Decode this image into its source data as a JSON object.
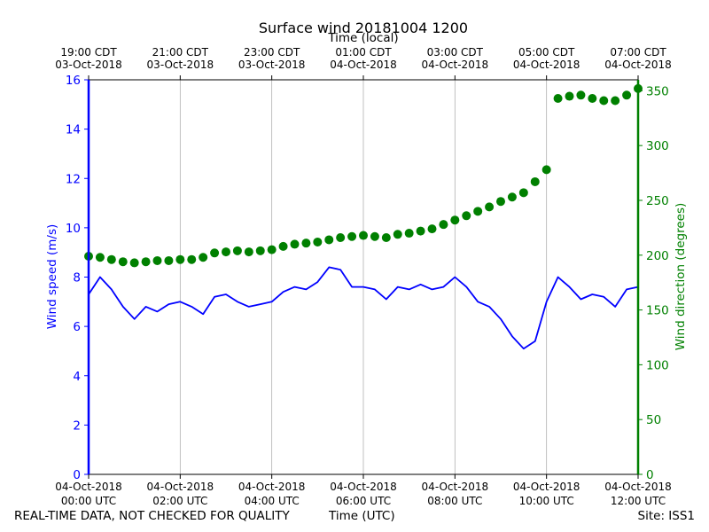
{
  "chart_data": {
    "type": "line",
    "title": "Surface wind 20181004 1200",
    "top_axis_label": "Time (local)",
    "xlabel": "Time (UTC)",
    "ylabel_left": "Wind speed (m/s)",
    "ylabel_right": "Wind direction (degrees)",
    "x_range_hours_utc": [
      0,
      12
    ],
    "ylim_left": [
      0,
      16
    ],
    "ylim_right": [
      0,
      360
    ],
    "left_ticks": [
      0,
      2,
      4,
      6,
      8,
      10,
      12,
      14,
      16
    ],
    "right_ticks": [
      0,
      50,
      100,
      150,
      200,
      250,
      300,
      350
    ],
    "bottom_ticks": [
      {
        "hour": 0,
        "line1": "04-Oct-2018",
        "line2": "00:00 UTC"
      },
      {
        "hour": 2,
        "line1": "04-Oct-2018",
        "line2": "02:00 UTC"
      },
      {
        "hour": 4,
        "line1": "04-Oct-2018",
        "line2": "04:00 UTC"
      },
      {
        "hour": 6,
        "line1": "04-Oct-2018",
        "line2": "06:00 UTC"
      },
      {
        "hour": 8,
        "line1": "04-Oct-2018",
        "line2": "08:00 UTC"
      },
      {
        "hour": 10,
        "line1": "04-Oct-2018",
        "line2": "10:00 UTC"
      },
      {
        "hour": 12,
        "line1": "04-Oct-2018",
        "line2": "12:00 UTC"
      }
    ],
    "top_ticks": [
      {
        "hour": 0,
        "line1": "19:00 CDT",
        "line2": "03-Oct-2018"
      },
      {
        "hour": 2,
        "line1": "21:00 CDT",
        "line2": "03-Oct-2018"
      },
      {
        "hour": 4,
        "line1": "23:00 CDT",
        "line2": "03-Oct-2018"
      },
      {
        "hour": 6,
        "line1": "01:00 CDT",
        "line2": "04-Oct-2018"
      },
      {
        "hour": 8,
        "line1": "03:00 CDT",
        "line2": "04-Oct-2018"
      },
      {
        "hour": 10,
        "line1": "05:00 CDT",
        "line2": "04-Oct-2018"
      },
      {
        "hour": 12,
        "line1": "07:00 CDT",
        "line2": "04-Oct-2018"
      }
    ],
    "series": [
      {
        "name": "Wind speed",
        "axis": "left",
        "style": "line",
        "color": "#0000ff",
        "x": [
          0,
          0.25,
          0.5,
          0.75,
          1,
          1.25,
          1.5,
          1.75,
          2,
          2.25,
          2.5,
          2.75,
          3,
          3.25,
          3.5,
          3.75,
          4,
          4.25,
          4.5,
          4.75,
          5,
          5.25,
          5.5,
          5.75,
          6,
          6.25,
          6.5,
          6.75,
          7,
          7.25,
          7.5,
          7.75,
          8,
          8.25,
          8.5,
          8.75,
          9,
          9.25,
          9.5,
          9.75,
          10,
          10.25,
          10.5,
          10.75,
          11,
          11.25,
          11.5,
          11.75,
          12
        ],
        "values": [
          7.3,
          8.0,
          7.5,
          6.8,
          6.3,
          6.8,
          6.6,
          6.9,
          7.0,
          6.8,
          6.5,
          7.2,
          7.3,
          7.0,
          6.8,
          6.9,
          7.0,
          7.4,
          7.6,
          7.5,
          7.8,
          8.4,
          8.3,
          7.6,
          7.6,
          7.5,
          7.1,
          7.6,
          7.5,
          7.7,
          7.5,
          7.6,
          8.0,
          7.6,
          7.0,
          6.8,
          6.3,
          5.6,
          5.1,
          5.4,
          7.0,
          8.0,
          7.6,
          7.1,
          7.3,
          7.2,
          6.8,
          7.5,
          7.6
        ]
      },
      {
        "name": "Wind direction",
        "axis": "right",
        "style": "dots",
        "color": "#008000",
        "x": [
          0,
          0.25,
          0.5,
          0.75,
          1,
          1.25,
          1.5,
          1.75,
          2,
          2.25,
          2.5,
          2.75,
          3,
          3.25,
          3.5,
          3.75,
          4,
          4.25,
          4.5,
          4.75,
          5,
          5.25,
          5.5,
          5.75,
          6,
          6.25,
          6.5,
          6.75,
          7,
          7.25,
          7.5,
          7.75,
          8,
          8.25,
          8.5,
          8.75,
          9,
          9.25,
          9.5,
          9.75,
          10,
          10.25,
          10.5,
          10.75,
          11,
          11.25,
          11.5,
          11.75,
          12
        ],
        "values": [
          199,
          198,
          196,
          194,
          193,
          194,
          195,
          195,
          196,
          196,
          198,
          202,
          203,
          204,
          203,
          204,
          205,
          208,
          210,
          211,
          212,
          214,
          216,
          217,
          218,
          217,
          216,
          219,
          220,
          222,
          224,
          228,
          232,
          236,
          240,
          244,
          249,
          253,
          257,
          267,
          278,
          343,
          345,
          346,
          343,
          341,
          341,
          346,
          352
        ]
      }
    ]
  },
  "footer": {
    "left": "REAL-TIME DATA, NOT CHECKED FOR QUALITY",
    "center": "Time (UTC)",
    "right": "Site: ISS1"
  }
}
